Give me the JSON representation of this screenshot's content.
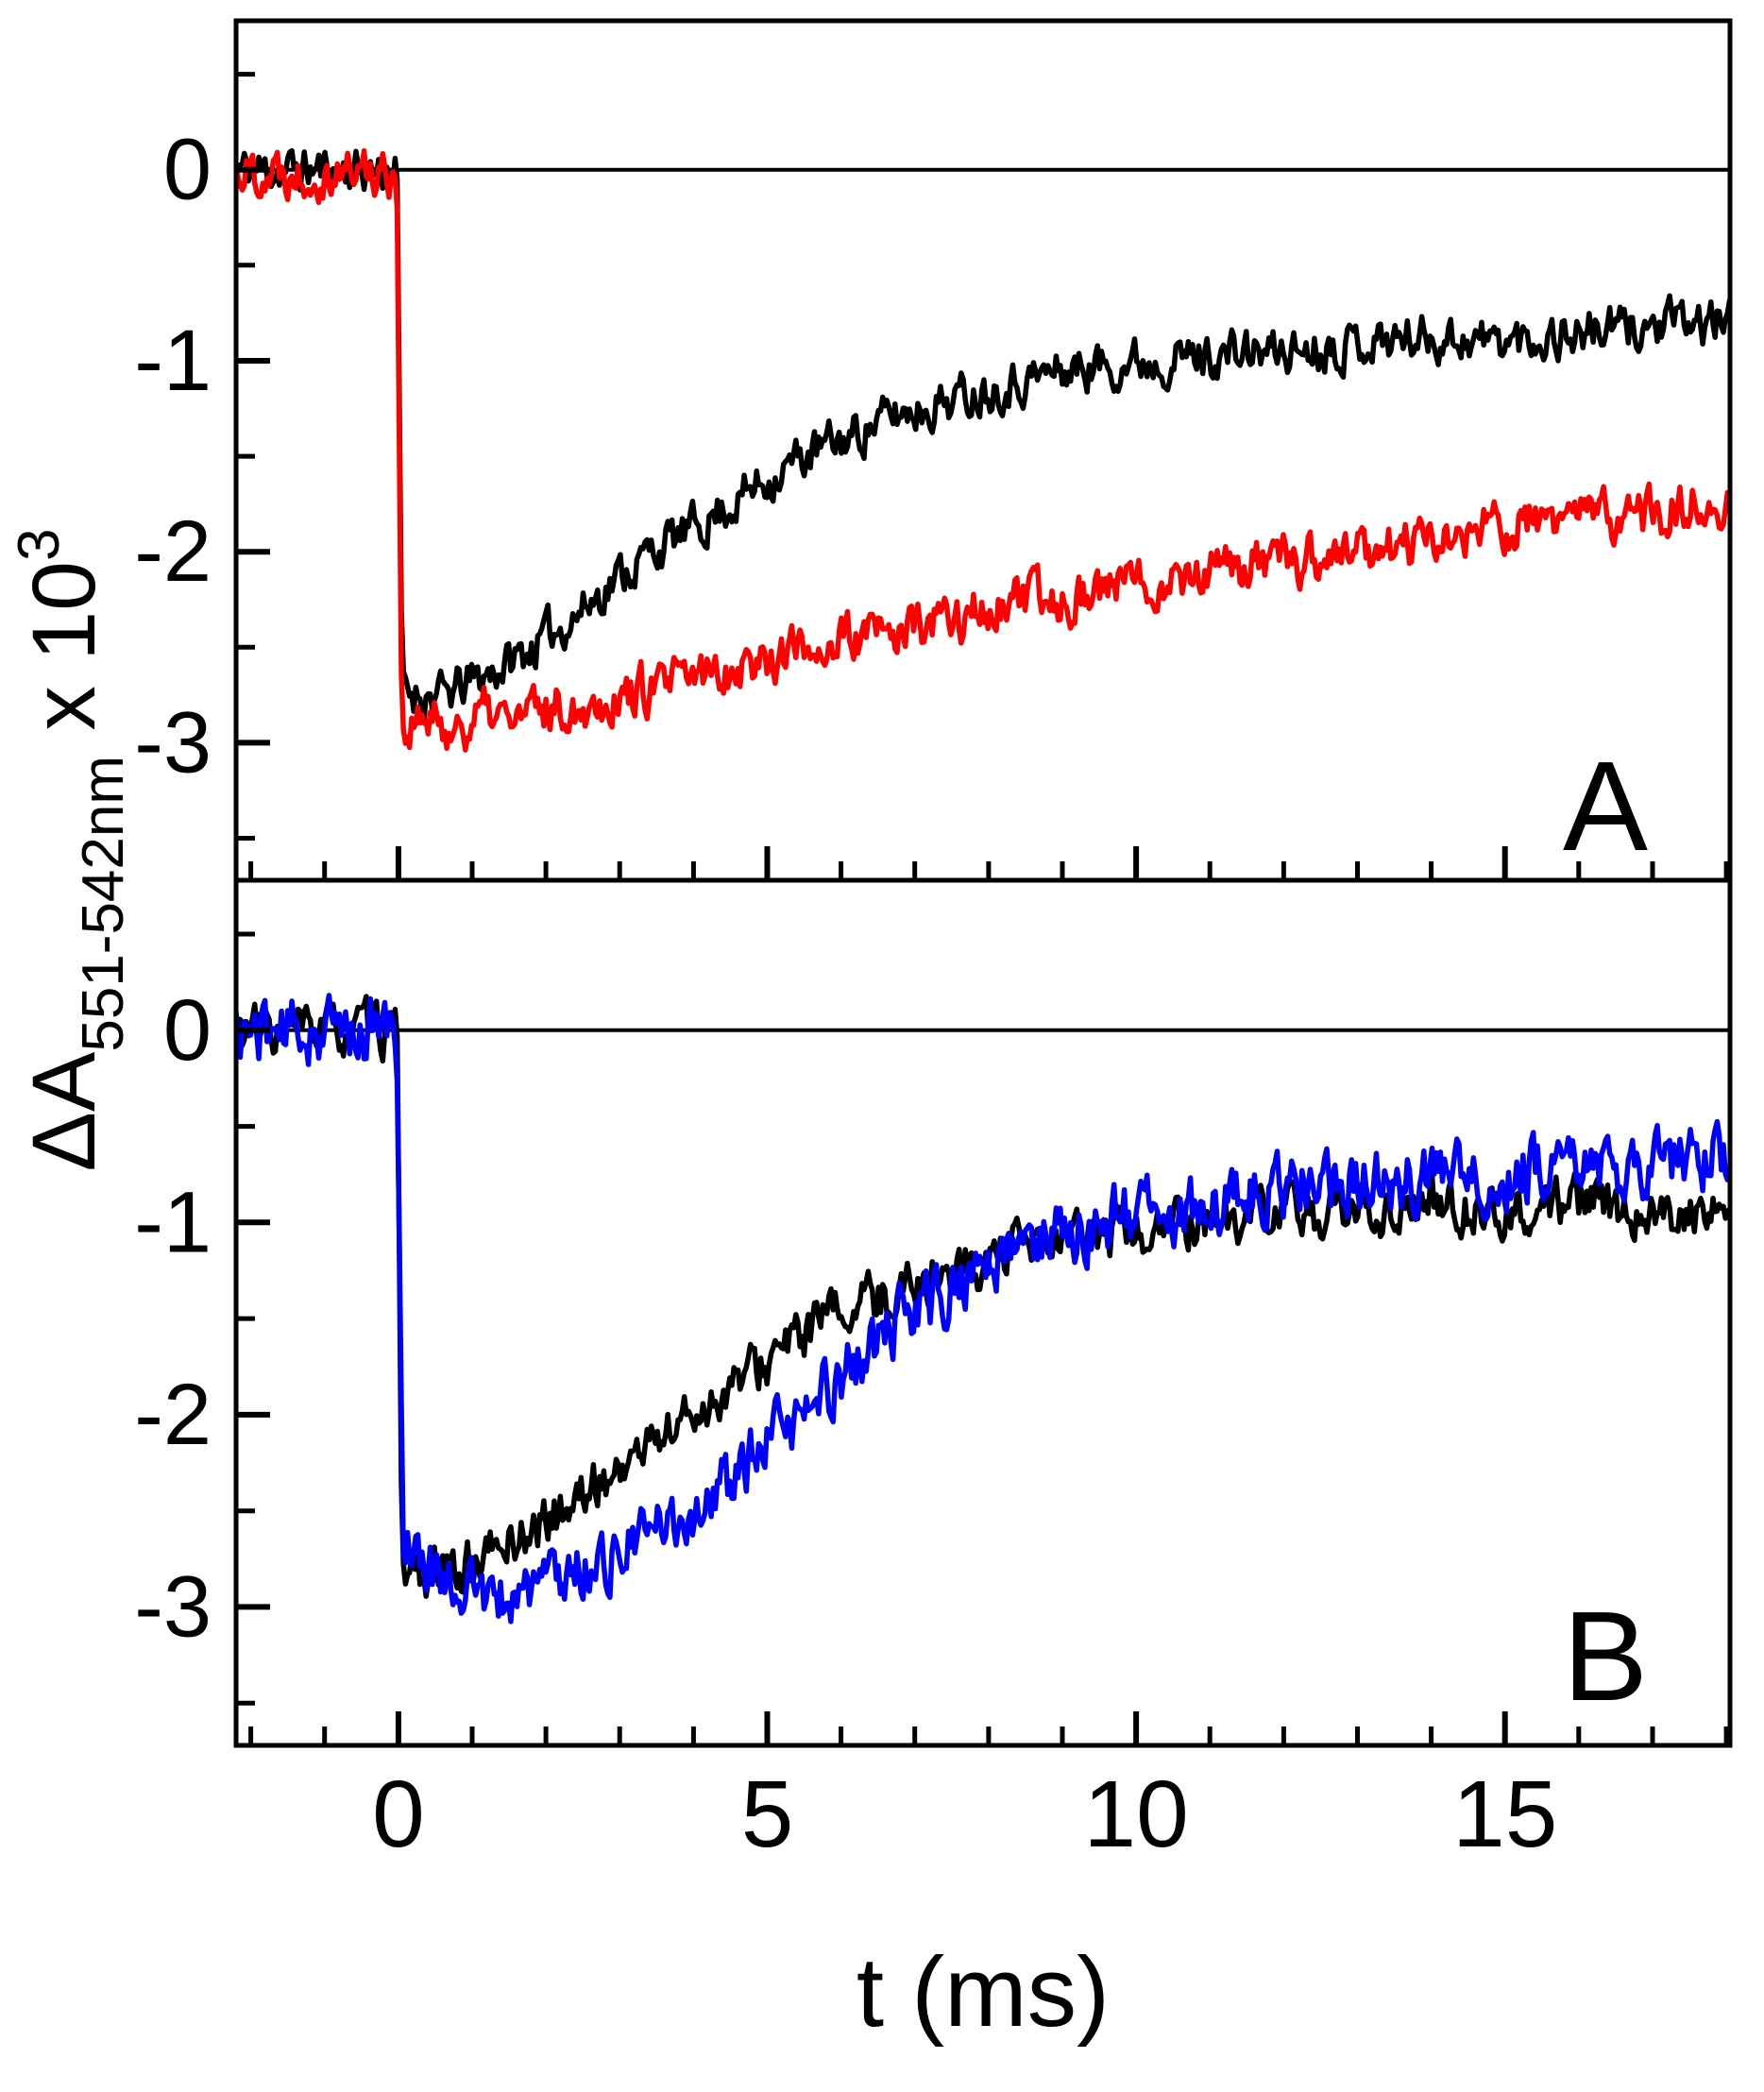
{
  "figure": {
    "background": "#ffffff",
    "axis_color": "#000000"
  },
  "axis": {
    "x_title": "t (ms)",
    "y_title_main": "ΔA",
    "y_title_sub": "551-542nm",
    "y_title_mult": " x 10",
    "y_title_exp": "3",
    "x_ticks": [
      0,
      5,
      10,
      15
    ],
    "x_minor_step": 1,
    "y_ticks": [
      0,
      -1,
      -2,
      -3
    ],
    "y_minor_step": 0.5,
    "xlim": [
      -2.2,
      18.05
    ],
    "ylim": [
      -3.72,
      0.78
    ],
    "grid": false,
    "legend": "none"
  },
  "chart_data": [
    {
      "type": "line",
      "panel_label": "A",
      "xlabel": "t (ms)",
      "ylabel": "ΔA551-542nm x 10^3",
      "xlim": [
        -2.2,
        18.05
      ],
      "ylim": [
        -3.72,
        0.78
      ],
      "xticks": [
        0,
        5,
        10,
        15
      ],
      "yticks": [
        0,
        -1,
        -2,
        -3
      ],
      "series": [
        {
          "name": "panel-a-black",
          "color": "#000000",
          "noise": 0.1,
          "seed": 11,
          "x": [
            -2.2,
            -0.02,
            0.05,
            0.6,
            1.0,
            1.5,
            2.0,
            2.5,
            3.0,
            3.5,
            4.0,
            4.5,
            5.0,
            5.5,
            6.0,
            6.5,
            7.0,
            7.5,
            8.0,
            9.0,
            10.0,
            11.0,
            12.0,
            13.0,
            14.0,
            15.0,
            16.0,
            17.0,
            18.0
          ],
          "y": [
            0.0,
            0.0,
            -2.72,
            -2.76,
            -2.68,
            -2.58,
            -2.45,
            -2.3,
            -2.12,
            -1.98,
            -1.88,
            -1.75,
            -1.62,
            -1.5,
            -1.42,
            -1.32,
            -1.25,
            -1.2,
            -1.14,
            -1.05,
            -1.0,
            -0.97,
            -0.95,
            -0.9,
            -0.87,
            -0.9,
            -0.85,
            -0.82,
            -0.8
          ]
        },
        {
          "name": "panel-a-red",
          "color": "#ff0000",
          "noise": 0.11,
          "seed": 22,
          "x": [
            -2.2,
            -0.02,
            0.05,
            0.3,
            0.8,
            1.2,
            1.6,
            2.0,
            2.5,
            3.0,
            3.5,
            4.0,
            4.5,
            5.0,
            5.5,
            6.0,
            6.5,
            7.0,
            7.5,
            8.0,
            9.0,
            10.0,
            11.0,
            12.0,
            13.0,
            14.0,
            15.0,
            16.0,
            17.0,
            18.0
          ],
          "y": [
            0.0,
            0.0,
            -2.95,
            -2.9,
            -2.92,
            -2.85,
            -2.88,
            -2.82,
            -2.8,
            -2.75,
            -2.72,
            -2.66,
            -2.6,
            -2.56,
            -2.5,
            -2.47,
            -2.44,
            -2.4,
            -2.36,
            -2.3,
            -2.24,
            -2.16,
            -2.1,
            -2.06,
            -2.0,
            -1.95,
            -1.87,
            -1.82,
            -1.8,
            -1.72
          ]
        }
      ]
    },
    {
      "type": "line",
      "panel_label": "B",
      "xlabel": "t (ms)",
      "ylabel": "ΔA551-542nm x 10^3",
      "xlim": [
        -2.2,
        18.05
      ],
      "ylim": [
        -3.72,
        0.78
      ],
      "xticks": [
        0,
        5,
        10,
        15
      ],
      "yticks": [
        0,
        -1,
        -2,
        -3
      ],
      "series": [
        {
          "name": "panel-b-black",
          "color": "#000000",
          "noise": 0.11,
          "seed": 33,
          "x": [
            -2.2,
            -0.02,
            0.05,
            0.5,
            1.0,
            1.5,
            2.0,
            2.5,
            3.0,
            3.5,
            4.0,
            4.5,
            5.0,
            5.5,
            6.0,
            6.5,
            7.0,
            7.5,
            8.0,
            9.0,
            10.0,
            11.0,
            12.0,
            13.0,
            14.0,
            15.0,
            16.0,
            17.0,
            18.0
          ],
          "y": [
            0.0,
            0.0,
            -2.78,
            -2.85,
            -2.78,
            -2.66,
            -2.56,
            -2.42,
            -2.28,
            -2.12,
            -2.0,
            -1.86,
            -1.72,
            -1.58,
            -1.46,
            -1.4,
            -1.3,
            -1.26,
            -1.2,
            -1.1,
            -1.05,
            -1.0,
            -0.96,
            -0.95,
            -0.9,
            -0.95,
            -0.9,
            -0.95,
            -0.95
          ]
        },
        {
          "name": "panel-b-blue",
          "color": "#0000ff",
          "noise": 0.14,
          "seed": 44,
          "x": [
            -2.2,
            -0.02,
            0.06,
            0.3,
            0.7,
            1.0,
            1.3,
            1.6,
            2.0,
            2.5,
            3.0,
            3.5,
            4.0,
            4.5,
            5.0,
            5.5,
            6.0,
            6.5,
            7.0,
            7.5,
            8.0,
            8.5,
            9.0,
            10.0,
            11.0,
            12.0,
            13.0,
            14.0,
            15.0,
            16.0,
            17.0,
            18.0
          ],
          "y": [
            0.0,
            0.0,
            -2.6,
            -2.78,
            -2.85,
            -2.9,
            -3.0,
            -2.92,
            -2.86,
            -2.8,
            -2.72,
            -2.6,
            -2.5,
            -2.35,
            -2.16,
            -2.0,
            -1.8,
            -1.62,
            -1.46,
            -1.35,
            -1.22,
            -1.12,
            -1.05,
            -0.95,
            -0.9,
            -0.8,
            -0.8,
            -0.76,
            -0.75,
            -0.7,
            -0.7,
            -0.66
          ]
        }
      ]
    }
  ]
}
